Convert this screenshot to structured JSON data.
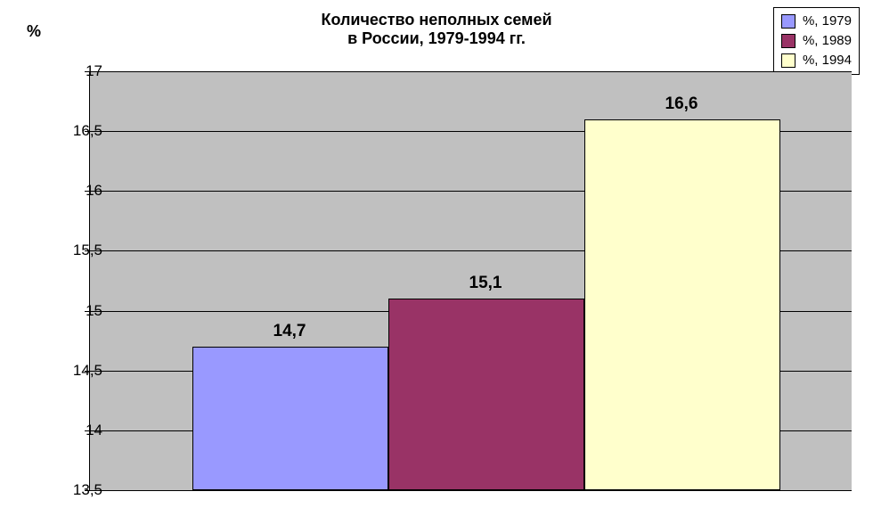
{
  "chart": {
    "type": "bar",
    "title_line1": "Количество неполных семей",
    "title_line2": "в России, 1979-1994 гг.",
    "title_fontsize": 18,
    "y_axis_title": "%",
    "background_color": "#ffffff",
    "plot_background_color": "#c0c0c0",
    "grid_color": "#000000",
    "ylim_min": 13.5,
    "ylim_max": 17.0,
    "ytick_step": 0.5,
    "yticks": [
      {
        "value": 13.5,
        "label": "13,5"
      },
      {
        "value": 14.0,
        "label": "14"
      },
      {
        "value": 14.5,
        "label": "14,5"
      },
      {
        "value": 15.0,
        "label": "15"
      },
      {
        "value": 15.5,
        "label": "15,5"
      },
      {
        "value": 16.0,
        "label": "16"
      },
      {
        "value": 16.5,
        "label": "16,5"
      },
      {
        "value": 17.0,
        "label": "17"
      }
    ],
    "bars": [
      {
        "category": "1979",
        "value": 14.7,
        "label": "14,7",
        "color": "#9999ff"
      },
      {
        "category": "1989",
        "value": 15.1,
        "label": "15,1",
        "color": "#993366"
      },
      {
        "category": "1994",
        "value": 16.6,
        "label": "16,6",
        "color": "#ffffcc"
      }
    ],
    "bar_border_color": "#000000",
    "label_fontsize": 17,
    "value_label_fontsize": 19,
    "legend": {
      "items": [
        {
          "label": "%, 1979",
          "color": "#9999ff"
        },
        {
          "label": "%, 1989",
          "color": "#993366"
        },
        {
          "label": "%, 1994",
          "color": "#ffffcc"
        }
      ],
      "font_size": 15,
      "border_color": "#000000",
      "background_color": "#ffffff"
    }
  }
}
